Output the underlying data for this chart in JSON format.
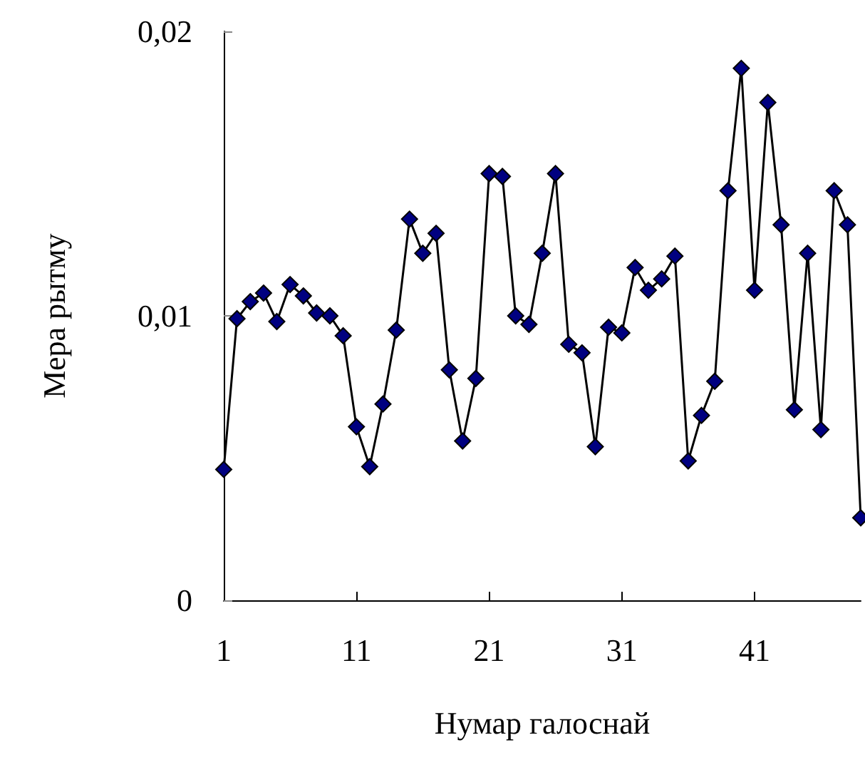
{
  "chart_data": {
    "type": "line",
    "xlabel": "Нумар галоснай",
    "ylabel": "Мера рытму",
    "categories": [
      "1",
      null,
      null,
      null,
      null,
      null,
      null,
      null,
      null,
      null,
      "11",
      null,
      null,
      null,
      null,
      null,
      null,
      null,
      null,
      null,
      "21",
      null,
      null,
      null,
      null,
      null,
      null,
      null,
      null,
      null,
      "31",
      null,
      null,
      null,
      null,
      null,
      null,
      null,
      null,
      null,
      "41",
      null,
      null,
      null,
      null,
      null,
      null,
      null,
      null
    ],
    "series": [
      {
        "color": "#000080",
        "values": [
          0.0046,
          0.0099,
          0.0105,
          0.0108,
          0.0098,
          0.0111,
          0.0107,
          0.0101,
          0.01,
          0.0093,
          0.0061,
          0.0047,
          0.0069,
          0.0095,
          0.0134,
          0.0122,
          0.0129,
          0.0081,
          0.0056,
          0.0078,
          0.015,
          0.0149,
          0.01,
          0.0097,
          0.0122,
          0.015,
          0.009,
          0.0087,
          0.0054,
          0.0096,
          0.0094,
          0.0117,
          0.0109,
          0.0113,
          0.0121,
          0.0049,
          0.0065,
          0.0077,
          0.0144,
          0.0187,
          0.0109,
          0.0175,
          0.0132,
          0.0067,
          0.0122,
          0.006,
          0.0144,
          0.0132,
          0.0029
        ]
      }
    ],
    "ylim": [
      0,
      0.02
    ],
    "yticks": [
      {
        "value": 0,
        "label": "0"
      },
      {
        "value": 0.01,
        "label": "0,01"
      },
      {
        "value": 0.02,
        "label": "0,02"
      }
    ],
    "marker": "diamond",
    "line_style": "solid"
  }
}
